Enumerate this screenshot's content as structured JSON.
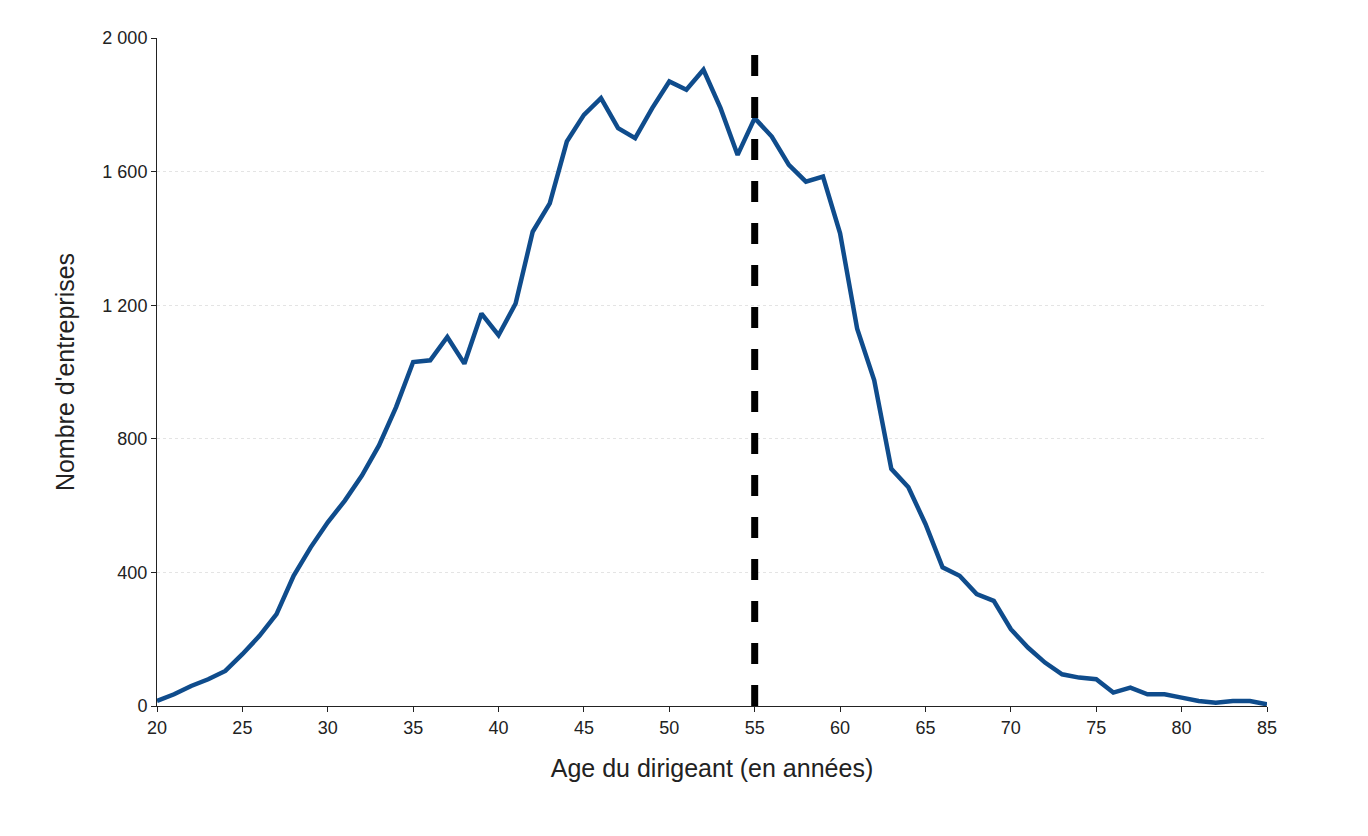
{
  "chart_data": {
    "type": "line",
    "x_label": "Age du dirigeant (en années)",
    "y_label": "Nombre d'entreprises",
    "x": [
      20,
      21,
      22,
      23,
      24,
      25,
      26,
      27,
      28,
      29,
      30,
      31,
      32,
      33,
      34,
      35,
      36,
      37,
      38,
      39,
      40,
      41,
      42,
      43,
      44,
      45,
      46,
      47,
      48,
      49,
      50,
      51,
      52,
      53,
      54,
      55,
      56,
      57,
      58,
      59,
      60,
      61,
      62,
      63,
      64,
      65,
      66,
      67,
      68,
      69,
      70,
      71,
      72,
      73,
      74,
      75,
      76,
      77,
      78,
      79,
      80,
      81,
      82,
      83,
      84,
      85
    ],
    "values": [
      15,
      35,
      60,
      80,
      105,
      155,
      210,
      275,
      390,
      475,
      550,
      615,
      690,
      780,
      895,
      1030,
      1035,
      1105,
      1025,
      1175,
      1110,
      1205,
      1420,
      1505,
      1690,
      1770,
      1820,
      1730,
      1700,
      1790,
      1870,
      1845,
      1905,
      1790,
      1650,
      1760,
      1705,
      1620,
      1570,
      1585,
      1415,
      1130,
      975,
      710,
      655,
      545,
      415,
      390,
      335,
      315,
      230,
      175,
      130,
      95,
      85,
      80,
      40,
      55,
      35,
      35,
      25,
      15,
      10,
      15,
      15,
      5
    ],
    "color": "#0f4c8c",
    "xlim": [
      20,
      85
    ],
    "xticks": [
      20,
      25,
      30,
      35,
      40,
      45,
      50,
      55,
      60,
      65,
      70,
      75,
      80,
      85
    ],
    "ylim": [
      0,
      2000
    ],
    "yticks": [
      0,
      400,
      800,
      {
        "value": 1200,
        "label": "1 200"
      },
      {
        "value": 1600,
        "label": "1 600"
      },
      {
        "value": 2000,
        "label": "2 000"
      }
    ],
    "grid": true,
    "vline": 55,
    "vline_color": "#000000",
    "vline_style": "dash"
  }
}
